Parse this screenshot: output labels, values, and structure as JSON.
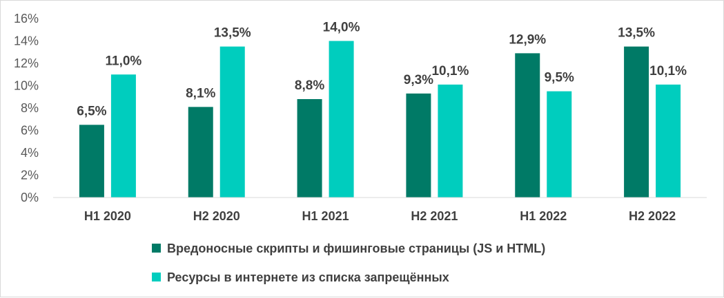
{
  "chart_data": {
    "type": "bar",
    "categories": [
      "H1 2020",
      "H2 2020",
      "H1 2021",
      "H2 2021",
      "H1 2022",
      "H2 2022"
    ],
    "series": [
      {
        "name": "Вредоносные скрипты и фишинговые страницы (JS и HTML)",
        "color": "#007a66",
        "values": [
          6.5,
          8.1,
          8.8,
          9.3,
          12.9,
          13.5
        ],
        "labels": [
          "6,5%",
          "8,1%",
          "8,8%",
          "9,3%",
          "12,9%",
          "13,5%"
        ]
      },
      {
        "name": "Ресурсы в интернете из списка запрещённых",
        "color": "#00cdbe",
        "values": [
          11.0,
          13.5,
          14.0,
          10.1,
          9.5,
          10.1
        ],
        "labels": [
          "11,0%",
          "13,5%",
          "14,0%",
          "10,1%",
          "9,5%",
          "10,1%"
        ]
      }
    ],
    "yticks": [
      "0%",
      "2%",
      "4%",
      "6%",
      "8%",
      "10%",
      "12%",
      "14%",
      "16%"
    ],
    "ylim": [
      0,
      16
    ],
    "grid": false,
    "legend_position": "bottom"
  }
}
